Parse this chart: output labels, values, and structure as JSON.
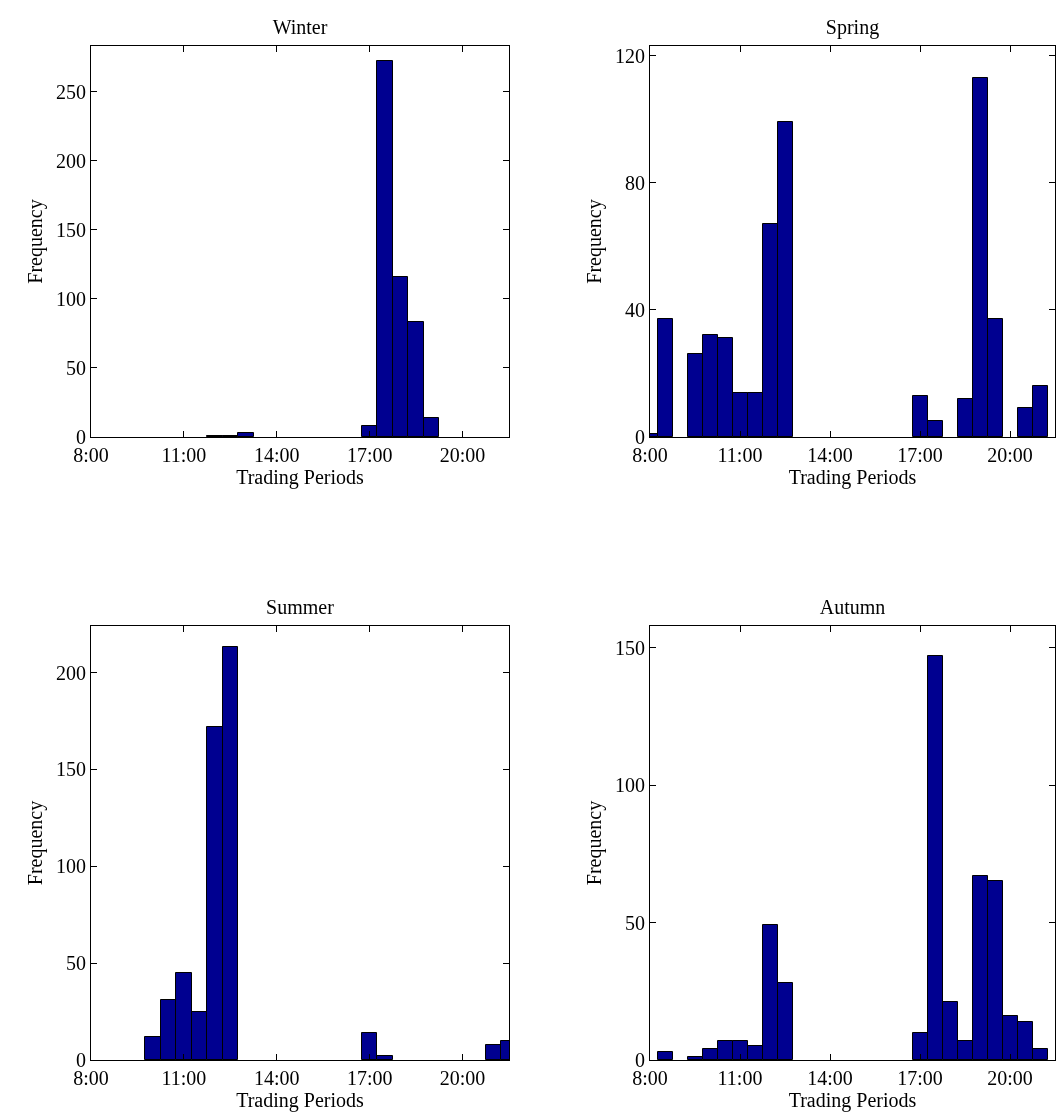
{
  "chart_data": [
    {
      "type": "histogram",
      "title": "Winter",
      "xlabel": "Trading Periods",
      "ylabel": "Frequency",
      "color": "#000090",
      "bins": [
        7.75,
        8.25,
        8.75,
        9.25,
        9.75,
        10.25,
        10.75,
        11.25,
        11.75,
        12.25,
        12.75,
        13.25,
        13.75,
        14.25,
        14.75,
        15.25,
        15.75,
        16.25,
        16.75,
        17.25,
        17.75,
        18.25,
        18.75,
        19.25,
        19.75,
        20.25,
        20.75,
        21.25,
        21.75
      ],
      "values": [
        0,
        0,
        0,
        0,
        0,
        0,
        0,
        0,
        1,
        1,
        3,
        0,
        0,
        0,
        0,
        0,
        0,
        0,
        8,
        272,
        116,
        83,
        14,
        0,
        0,
        0,
        0,
        0
      ],
      "xlim": [
        8,
        21.5
      ],
      "xticks": [
        {
          "value": 8,
          "label": "8:00"
        },
        {
          "value": 11,
          "label": "11:00"
        },
        {
          "value": 14,
          "label": "14:00"
        },
        {
          "value": 17,
          "label": "17:00"
        },
        {
          "value": 20,
          "label": "20:00"
        }
      ],
      "ylim": [
        0,
        283
      ],
      "yticks": [
        0,
        50,
        100,
        150,
        200,
        250
      ]
    },
    {
      "type": "histogram",
      "title": "Spring",
      "xlabel": "Trading Periods",
      "ylabel": "Frequency",
      "color": "#000090",
      "bins": [
        7.75,
        8.25,
        8.75,
        9.25,
        9.75,
        10.25,
        10.75,
        11.25,
        11.75,
        12.25,
        12.75,
        13.25,
        13.75,
        14.25,
        14.75,
        15.25,
        15.75,
        16.25,
        16.75,
        17.25,
        17.75,
        18.25,
        18.75,
        19.25,
        19.75,
        20.25,
        20.75,
        21.25,
        21.75
      ],
      "values": [
        1,
        37,
        0,
        26,
        32,
        31,
        14,
        14,
        67,
        99,
        0,
        0,
        0,
        0,
        0,
        0,
        0,
        0,
        13,
        5,
        0,
        12,
        113,
        37,
        0,
        9,
        16,
        null
      ],
      "xlim": [
        8,
        21.5
      ],
      "xticks": [
        {
          "value": 8,
          "label": "8:00"
        },
        {
          "value": 11,
          "label": "11:00"
        },
        {
          "value": 14,
          "label": "14:00"
        },
        {
          "value": 17,
          "label": "17:00"
        },
        {
          "value": 20,
          "label": "20:00"
        }
      ],
      "ylim": [
        0,
        123
      ],
      "yticks": [
        0,
        40,
        80,
        120
      ]
    },
    {
      "type": "histogram",
      "title": "Summer",
      "xlabel": "Trading Periods",
      "ylabel": "Frequency",
      "color": "#000090",
      "bins": [
        7.75,
        8.25,
        8.75,
        9.25,
        9.75,
        10.25,
        10.75,
        11.25,
        11.75,
        12.25,
        12.75,
        13.25,
        13.75,
        14.25,
        14.75,
        15.25,
        15.75,
        16.25,
        16.75,
        17.25,
        17.75,
        18.25,
        18.75,
        19.25,
        19.75,
        20.25,
        20.75,
        21.25,
        21.75
      ],
      "values": [
        0,
        0,
        0,
        0,
        12,
        31,
        45,
        25,
        172,
        213,
        0,
        0,
        0,
        0,
        0,
        0,
        0,
        0,
        14,
        2,
        0,
        0,
        0,
        0,
        0,
        0,
        8,
        10
      ],
      "xlim": [
        8,
        21.5
      ],
      "xticks": [
        {
          "value": 8,
          "label": "8:00"
        },
        {
          "value": 11,
          "label": "11:00"
        },
        {
          "value": 14,
          "label": "14:00"
        },
        {
          "value": 17,
          "label": "17:00"
        },
        {
          "value": 20,
          "label": "20:00"
        }
      ],
      "ylim": [
        0,
        224
      ],
      "yticks": [
        0,
        50,
        100,
        150,
        200
      ]
    },
    {
      "type": "histogram",
      "title": "Autumn",
      "xlabel": "Trading Periods",
      "ylabel": "Frequency",
      "color": "#000090",
      "bins": [
        7.75,
        8.25,
        8.75,
        9.25,
        9.75,
        10.25,
        10.75,
        11.25,
        11.75,
        12.25,
        12.75,
        13.25,
        13.75,
        14.25,
        14.75,
        15.25,
        15.75,
        16.25,
        16.75,
        17.25,
        17.75,
        18.25,
        18.75,
        19.25,
        19.75,
        20.25,
        20.75,
        21.25,
        21.75
      ],
      "values": [
        0,
        3,
        0,
        1,
        4,
        7,
        7,
        5,
        49,
        28,
        0,
        0,
        0,
        0,
        0,
        0,
        0,
        0,
        10,
        147,
        21,
        7,
        67,
        65,
        16,
        14,
        4,
        null
      ],
      "xlim": [
        8,
        21.5
      ],
      "xticks": [
        {
          "value": 8,
          "label": "8:00"
        },
        {
          "value": 11,
          "label": "11:00"
        },
        {
          "value": 14,
          "label": "14:00"
        },
        {
          "value": 17,
          "label": "17:00"
        },
        {
          "value": 20,
          "label": "20:00"
        }
      ],
      "ylim": [
        0,
        158
      ],
      "yticks": [
        0,
        50,
        100,
        150
      ]
    }
  ]
}
